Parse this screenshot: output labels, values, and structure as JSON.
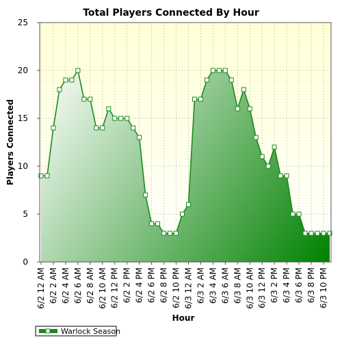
{
  "chart_data": {
    "type": "area",
    "title": "Total Players Connected By Hour",
    "xlabel": "Hour",
    "ylabel": "Players Connected",
    "ylim": [
      0,
      25
    ],
    "yticks": [
      0,
      5,
      10,
      15,
      20,
      25
    ],
    "grid": true,
    "legend_position": "bottom-left",
    "x_tick_labels": [
      "6/2 12 AM",
      "6/2 2 AM",
      "6/2 4 AM",
      "6/2 6 AM",
      "6/2 8 AM",
      "6/2 10 AM",
      "6/2 12 PM",
      "6/2 2 PM",
      "6/2 4 PM",
      "6/2 6 PM",
      "6/2 8 PM",
      "6/2 10 PM",
      "6/3 12 AM",
      "6/3 2 AM",
      "6/3 4 AM",
      "6/3 6 AM",
      "6/3 8 AM",
      "6/3 10 AM",
      "6/3 12 PM",
      "6/3 2 PM",
      "6/3 4 PM",
      "6/3 6 PM",
      "6/3 8 PM",
      "6/3 10 PM"
    ],
    "x": [
      "6/2 12 AM",
      "6/2 1 AM",
      "6/2 2 AM",
      "6/2 3 AM",
      "6/2 4 AM",
      "6/2 5 AM",
      "6/2 6 AM",
      "6/2 7 AM",
      "6/2 8 AM",
      "6/2 9 AM",
      "6/2 10 AM",
      "6/2 11 AM",
      "6/2 12 PM",
      "6/2 1 PM",
      "6/2 2 PM",
      "6/2 3 PM",
      "6/2 4 PM",
      "6/2 5 PM",
      "6/2 6 PM",
      "6/2 7 PM",
      "6/2 8 PM",
      "6/2 9 PM",
      "6/2 10 PM",
      "6/2 11 PM",
      "6/3 12 AM",
      "6/3 1 AM",
      "6/3 2 AM",
      "6/3 3 AM",
      "6/3 4 AM",
      "6/3 5 AM",
      "6/3 6 AM",
      "6/3 7 AM",
      "6/3 8 AM",
      "6/3 9 AM",
      "6/3 10 AM",
      "6/3 11 AM",
      "6/3 12 PM",
      "6/3 1 PM",
      "6/3 2 PM",
      "6/3 3 PM",
      "6/3 4 PM",
      "6/3 5 PM",
      "6/3 6 PM",
      "6/3 7 PM",
      "6/3 8 PM",
      "6/3 9 PM",
      "6/3 10 PM",
      "6/3 11 PM"
    ],
    "series": [
      {
        "name": "Warlock Season",
        "color": "#1a8a1a",
        "values": [
          9,
          9,
          14,
          18,
          19,
          19,
          20,
          17,
          17,
          14,
          14,
          16,
          15,
          15,
          15,
          14,
          13,
          7,
          4,
          4,
          3,
          3,
          3,
          5,
          6,
          17,
          17,
          19,
          20,
          20,
          20,
          19,
          16,
          18,
          16,
          13,
          11,
          10,
          12,
          9,
          9,
          5,
          5,
          3,
          3,
          3,
          3,
          3
        ]
      }
    ],
    "colors": {
      "plot_bg_top": "#ffffd6",
      "plot_bg_bottom": "#ffffff",
      "line": "#1a8a1a",
      "area_light": "#ffffff",
      "area_dark": "#008000",
      "grid": "#b0b0a0"
    }
  }
}
